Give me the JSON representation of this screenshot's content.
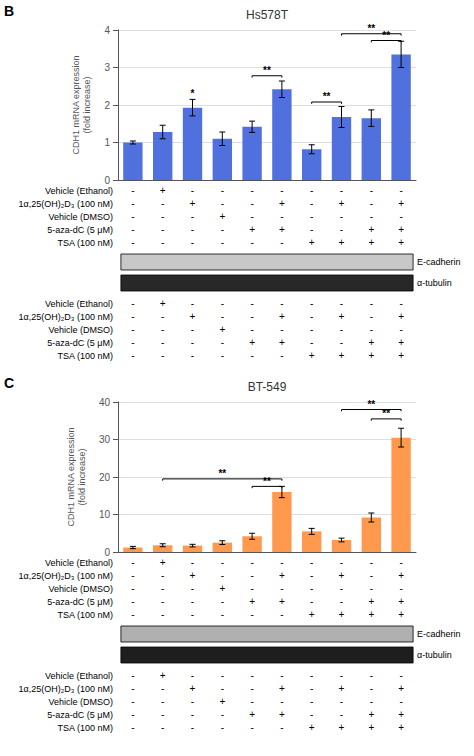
{
  "chart_data": [
    {
      "type": "bar",
      "panel_label": "B",
      "title": "Hs578T",
      "ylabel": "CDH1 mRNA expression\n(fold increase)",
      "categories": [
        null,
        null,
        null,
        null,
        null,
        null,
        null,
        null,
        null,
        null
      ],
      "values": [
        1.0,
        1.28,
        1.93,
        1.1,
        1.42,
        2.42,
        0.82,
        1.68,
        1.65,
        3.35
      ],
      "errors": [
        0.04,
        0.18,
        0.22,
        0.18,
        0.15,
        0.22,
        0.12,
        0.28,
        0.22,
        0.35
      ],
      "ylim": [
        0,
        4
      ],
      "yticks": [
        0,
        1,
        2,
        3,
        4
      ],
      "grid": true,
      "tick_labels": "y",
      "significance": [
        {
          "from": 2,
          "to": 2,
          "y": 2.18,
          "label": "*"
        },
        {
          "from": 4,
          "to": 5,
          "y": 2.78,
          "label": "**"
        },
        {
          "from": 6,
          "to": 7,
          "y": 2.08,
          "label": "**"
        },
        {
          "from": 8,
          "to": 9,
          "y": 3.72,
          "label": "**"
        },
        {
          "from": 7,
          "to": 9,
          "y": 3.9,
          "label": "**"
        }
      ],
      "treatments": [
        {
          "label": "Vehicle (Ethanol)",
          "pattern": [
            "-",
            "+",
            "-",
            "-",
            "-",
            "-",
            "-",
            "-",
            "-",
            "-"
          ]
        },
        {
          "label": "1α,25(OH)₂D₃ (100 nM)",
          "pattern": [
            "-",
            "-",
            "+",
            "-",
            "-",
            "+",
            "-",
            "+",
            "-",
            "+"
          ]
        },
        {
          "label": "Vehicle (DMSO)",
          "pattern": [
            "-",
            "-",
            "-",
            "+",
            "-",
            "-",
            "-",
            "-",
            "-",
            "-"
          ]
        },
        {
          "label": "5-aza-dC (5 μM)",
          "pattern": [
            "-",
            "-",
            "-",
            "-",
            "+",
            "+",
            "-",
            "-",
            "+",
            "+"
          ]
        },
        {
          "label": "TSA (100 nM)",
          "pattern": [
            "-",
            "-",
            "-",
            "-",
            "-",
            "-",
            "+",
            "+",
            "+",
            "+"
          ]
        }
      ],
      "blots": [
        {
          "label": "E-cadherin",
          "color": "#c8c8c8"
        },
        {
          "label": "α-tubulin",
          "color": "#282828"
        }
      ]
    },
    {
      "type": "bar",
      "panel_label": "C",
      "title": "BT-549",
      "ylabel": "CDH1 mRNA expression\n(fold increase)",
      "categories": [
        null,
        null,
        null,
        null,
        null,
        null,
        null,
        null,
        null,
        null
      ],
      "values": [
        1.2,
        1.8,
        1.7,
        2.5,
        4.2,
        16.0,
        5.5,
        3.2,
        9.2,
        30.5
      ],
      "errors": [
        0.3,
        0.4,
        0.35,
        0.5,
        0.8,
        1.5,
        0.8,
        0.5,
        1.2,
        2.5
      ],
      "ylim": [
        0,
        40
      ],
      "yticks": [
        0,
        10,
        20,
        30,
        40
      ],
      "grid": true,
      "tick_labels": "y",
      "significance": [
        {
          "from": 1,
          "to": 5,
          "y": 19.5,
          "label": "**"
        },
        {
          "from": 4,
          "to": 5,
          "y": 17.5,
          "label": "**"
        },
        {
          "from": 8,
          "to": 9,
          "y": 35.5,
          "label": "**"
        },
        {
          "from": 7,
          "to": 9,
          "y": 38.0,
          "label": "**"
        }
      ],
      "treatments": [
        {
          "label": "Vehicle (Ethanol)",
          "pattern": [
            "-",
            "+",
            "-",
            "-",
            "-",
            "-",
            "-",
            "-",
            "-",
            "-"
          ]
        },
        {
          "label": "1α,25(OH)₂D₃ (100 nM)",
          "pattern": [
            "-",
            "-",
            "+",
            "-",
            "-",
            "+",
            "-",
            "+",
            "-",
            "+"
          ]
        },
        {
          "label": "Vehicle (DMSO)",
          "pattern": [
            "-",
            "-",
            "-",
            "+",
            "-",
            "-",
            "-",
            "-",
            "-",
            "-"
          ]
        },
        {
          "label": "5-aza-dC (5 μM)",
          "pattern": [
            "-",
            "-",
            "-",
            "-",
            "+",
            "+",
            "-",
            "-",
            "+",
            "+"
          ]
        },
        {
          "label": "TSA (100 nM)",
          "pattern": [
            "-",
            "-",
            "-",
            "-",
            "-",
            "-",
            "+",
            "+",
            "+",
            "+"
          ]
        }
      ],
      "blots": [
        {
          "label": "E-cadherin",
          "color": "#b0b0b0"
        },
        {
          "label": "α-tubulin",
          "color": "#1e1e1e"
        }
      ]
    }
  ]
}
